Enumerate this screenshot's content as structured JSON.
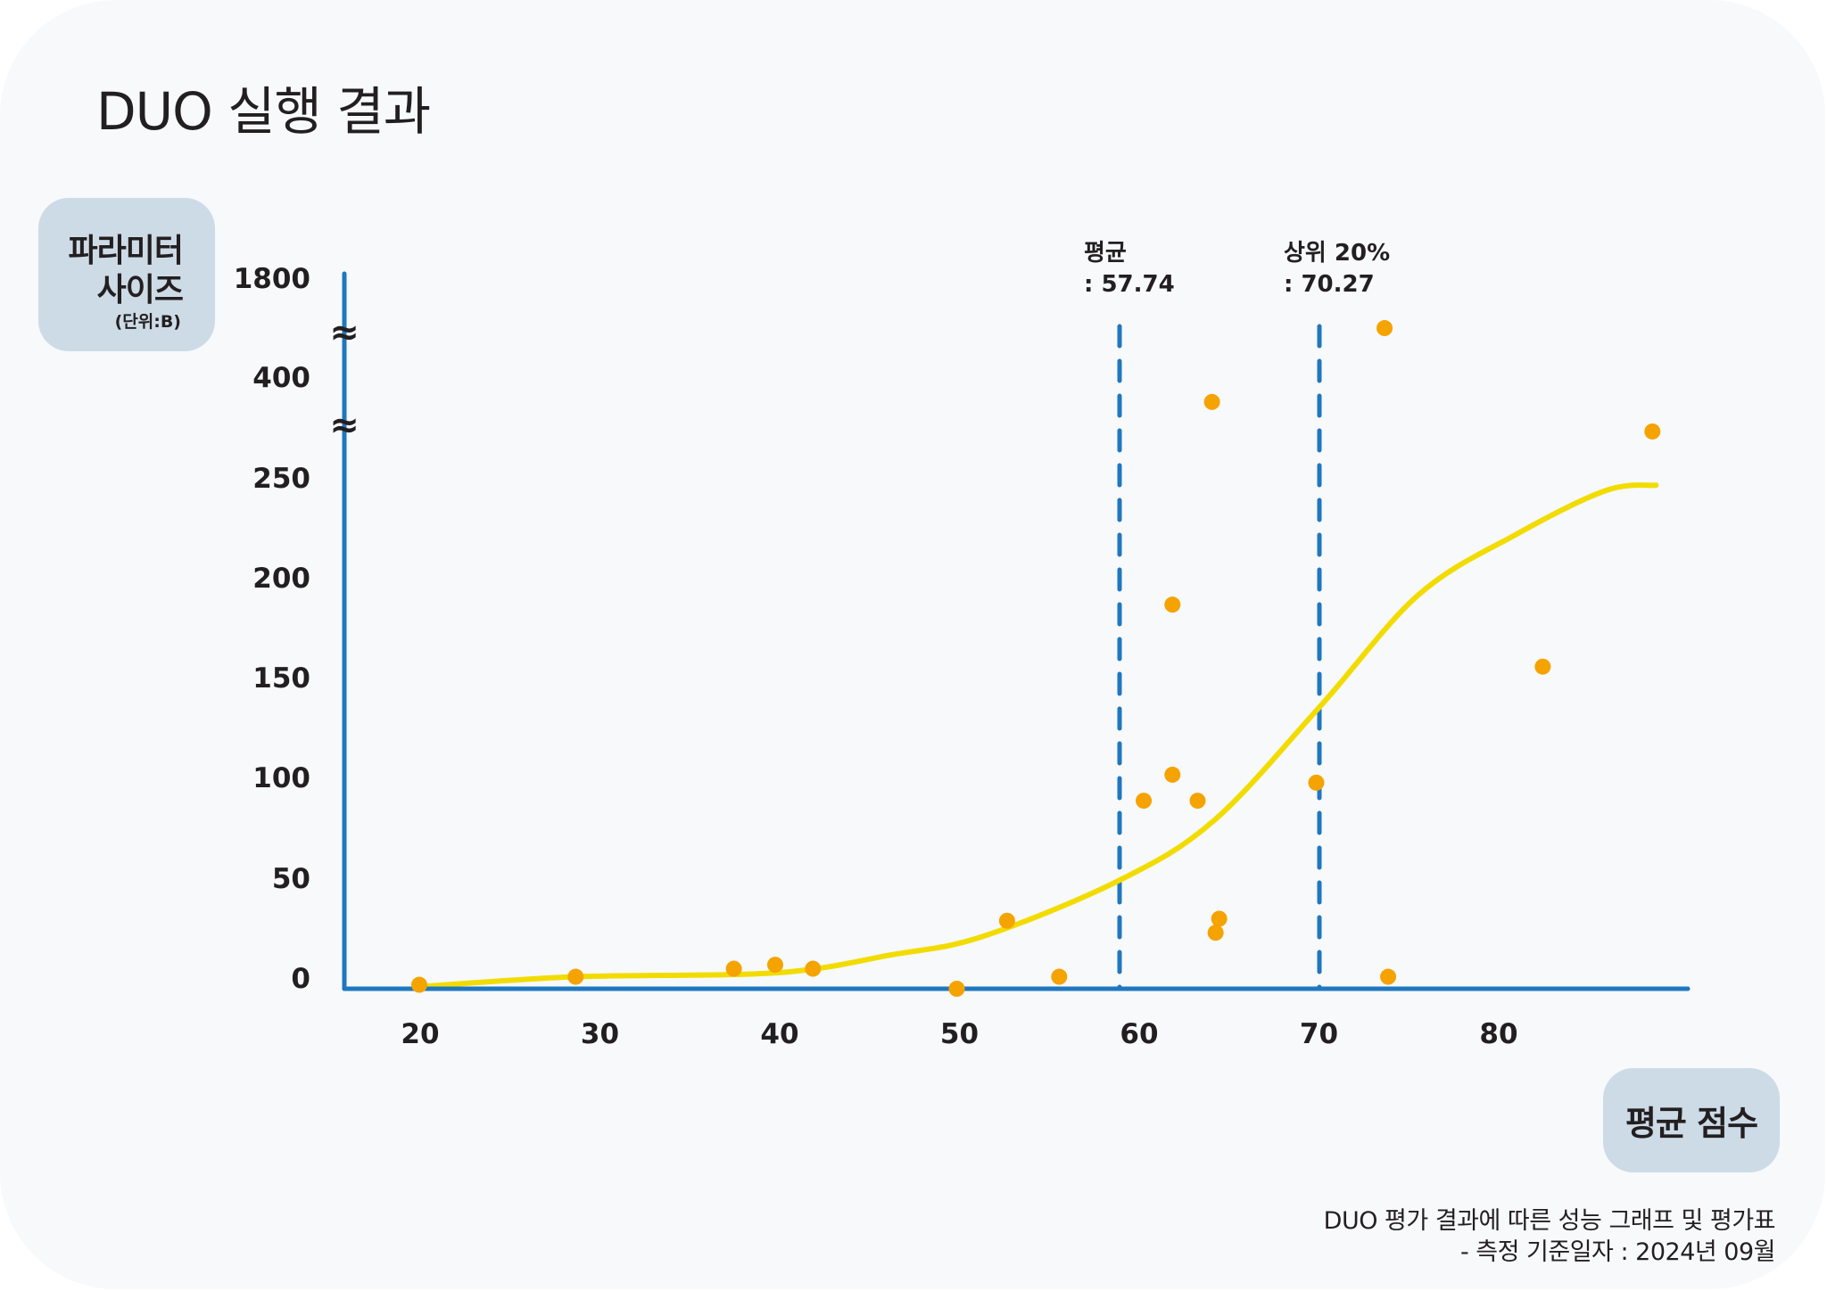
{
  "title": "DUO 실행 결과",
  "y_axis_box": {
    "line1": "파라미터",
    "line2": "사이즈",
    "unit": "(단위:B)"
  },
  "x_axis_box": {
    "label": "평균 점수"
  },
  "footnote": {
    "line1": "DUO 평가 결과에 따른 성능 그래프 및 평가표",
    "line2": "- 측정 기준일자 : 2024년 09월"
  },
  "colors": {
    "axis": "#1f77c0",
    "points": "#f5a300",
    "trend": "#f2dc00",
    "label_box": "#cddbe7",
    "card": "#f7f9fb",
    "text": "#231f20"
  },
  "chart_data": {
    "type": "scatter",
    "title": "DUO 실행 결과",
    "xlabel": "평균 점수",
    "ylabel": "파라미터 사이즈 (단위:B)",
    "x_ticks": [
      20,
      30,
      40,
      50,
      60,
      70,
      80
    ],
    "x_tick_labels": [
      "20",
      "30",
      "40",
      "50",
      "60",
      "70",
      "80"
    ],
    "y_ticks": [
      0,
      50,
      100,
      150,
      200,
      250,
      400,
      1800
    ],
    "y_tick_labels": [
      "0",
      "50",
      "100",
      "150",
      "200",
      "250",
      "400",
      "1800"
    ],
    "y_axis_breaks": [
      [
        250,
        400
      ],
      [
        400,
        1800
      ]
    ],
    "break_symbol": "≈",
    "xlim": [
      17,
      91
    ],
    "ylim": [
      0,
      1800
    ],
    "grid": false,
    "legend": "none",
    "points": [
      {
        "x": 20.0,
        "y": 2
      },
      {
        "x": 28.7,
        "y": 6
      },
      {
        "x": 37.5,
        "y": 10
      },
      {
        "x": 39.8,
        "y": 12
      },
      {
        "x": 41.9,
        "y": 10
      },
      {
        "x": 49.9,
        "y": 0
      },
      {
        "x": 52.7,
        "y": 34
      },
      {
        "x": 55.6,
        "y": 6
      },
      {
        "x": 60.3,
        "y": 94
      },
      {
        "x": 61.9,
        "y": 107
      },
      {
        "x": 63.3,
        "y": 94
      },
      {
        "x": 61.9,
        "y": 192
      },
      {
        "x": 64.5,
        "y": 35
      },
      {
        "x": 64.3,
        "y": 28
      },
      {
        "x": 64.1,
        "y": 379
      },
      {
        "x": 69.9,
        "y": 103
      },
      {
        "x": 73.9,
        "y": 6
      },
      {
        "x": 73.7,
        "y": 1245
      },
      {
        "x": 82.5,
        "y": 161
      },
      {
        "x": 88.6,
        "y": 335
      }
    ],
    "trend_line": [
      {
        "x": 20.0,
        "y": 1
      },
      {
        "x": 28.7,
        "y": 6
      },
      {
        "x": 39.9,
        "y": 8
      },
      {
        "x": 46.3,
        "y": 17
      },
      {
        "x": 51.3,
        "y": 26
      },
      {
        "x": 58.9,
        "y": 54
      },
      {
        "x": 64.2,
        "y": 84
      },
      {
        "x": 70.1,
        "y": 141
      },
      {
        "x": 75.6,
        "y": 197
      },
      {
        "x": 81.0,
        "y": 227
      },
      {
        "x": 86.0,
        "y": 249
      },
      {
        "x": 88.8,
        "y": 255
      }
    ],
    "reference_lines": [
      {
        "name": "mean",
        "label_line1": "평균",
        "label_line2": ": 57.74",
        "x": 57.74
      },
      {
        "name": "top20",
        "label_line1": "상위 20%",
        "label_line2": ": 70.27",
        "x": 70.27
      }
    ]
  }
}
